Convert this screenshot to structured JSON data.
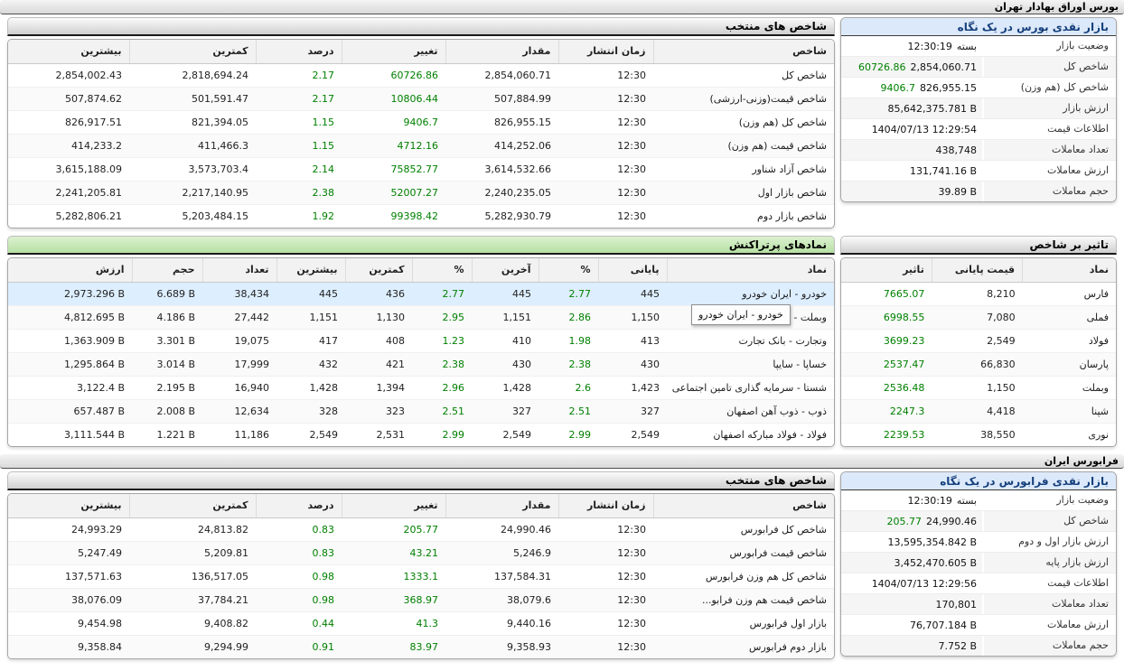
{
  "colors": {
    "positive": "#008000",
    "highlight-row": "#ddeeff",
    "green-bar": "#b6e0a3",
    "blue-head-bg": "#dce9fa",
    "blue-head-text": "#16407c"
  },
  "page": {
    "bourse_title": "بورس اوراق بهادار تهران",
    "fara_title": "فرابورس ایران"
  },
  "bourse_indices": {
    "title": "شاخص های منتخب",
    "headers": [
      "شاخص",
      "زمان انتشار",
      "مقدار",
      "تغییر",
      "درصد",
      "کمترین",
      "بیشترین"
    ],
    "rows": [
      {
        "name": "شاخص کل",
        "time": "12:30",
        "value": "2,854,060.71",
        "change": "60726.86",
        "percent": "2.17",
        "low": "2,818,694.24",
        "high": "2,854,002.43"
      },
      {
        "name": "شاخص قیمت(وزنی-ارزشی)",
        "time": "12:30",
        "value": "507,884.99",
        "change": "10806.44",
        "percent": "2.17",
        "low": "501,591.47",
        "high": "507,874.62"
      },
      {
        "name": "شاخص کل (هم وزن)",
        "time": "12:30",
        "value": "826,955.15",
        "change": "9406.7",
        "percent": "1.15",
        "low": "821,394.05",
        "high": "826,917.51"
      },
      {
        "name": "شاخص قیمت (هم وزن)",
        "time": "12:30",
        "value": "414,252.06",
        "change": "4712.16",
        "percent": "1.15",
        "low": "411,466.3",
        "high": "414,233.2"
      },
      {
        "name": "شاخص آزاد شناور",
        "time": "12:30",
        "value": "3,614,532.66",
        "change": "75852.77",
        "percent": "2.14",
        "low": "3,573,703.4",
        "high": "3,615,188.09"
      },
      {
        "name": "شاخص بازار اول",
        "time": "12:30",
        "value": "2,240,235.05",
        "change": "52007.27",
        "percent": "2.38",
        "low": "2,217,140.95",
        "high": "2,241,205.81"
      },
      {
        "name": "شاخص بازار دوم",
        "time": "12:30",
        "value": "5,282,930.79",
        "change": "99398.42",
        "percent": "1.92",
        "low": "5,203,484.15",
        "high": "5,282,806.21"
      }
    ]
  },
  "bourse_glance": {
    "title": "بازار نقدی بورس در یک نگاه",
    "rows": [
      {
        "label": "وضعیت بازار",
        "pre": "بسته",
        "value": "12:30:19"
      },
      {
        "label": "شاخص کل",
        "value": "2,854,060.71",
        "change": "60726.86"
      },
      {
        "label": "شاخص کل (هم وزن)",
        "value": "826,955.15",
        "change": "9406.7"
      },
      {
        "label": "ارزش بازار",
        "value": "85,642,375.781 B"
      },
      {
        "label": "اطلاعات قیمت",
        "value": "1404/07/13 12:29:54"
      },
      {
        "label": "تعداد معاملات",
        "value": "438,748"
      },
      {
        "label": "ارزش معاملات",
        "value": "131,741.16 B"
      },
      {
        "label": "حجم معاملات",
        "value": "39.89 B"
      }
    ]
  },
  "active_symbols": {
    "title": "نمادهای پرتراکنش",
    "tooltip": "خودرو - ایران خودرو",
    "headers": [
      "نماد",
      "پایانی",
      "%",
      "آخرین",
      "%",
      "کمترین",
      "بیشترین",
      "تعداد",
      "حجم",
      "ارزش"
    ],
    "rows": [
      {
        "hl": true,
        "name": "خودرو - ایران خودرو",
        "close": "445",
        "close_pct": "2.77",
        "last": "445",
        "last_pct": "2.77",
        "low": "436",
        "high": "445",
        "count": "38,434",
        "volume": "6.689 B",
        "value": "2,973.296 B"
      },
      {
        "name": "وبملت - بانک ملت",
        "close": "1,150",
        "close_pct": "2.86",
        "last": "1,151",
        "last_pct": "2.95",
        "low": "1,130",
        "high": "1,151",
        "count": "27,442",
        "volume": "4.186 B",
        "value": "4,812.695 B"
      },
      {
        "name": "وتجارت - بانک تجارت",
        "close": "413",
        "close_pct": "1.98",
        "last": "410",
        "last_pct": "1.23",
        "low": "408",
        "high": "417",
        "count": "19,075",
        "volume": "3.301 B",
        "value": "1,363.909 B"
      },
      {
        "name": "خساپا - سایپا",
        "close": "430",
        "close_pct": "2.38",
        "last": "430",
        "last_pct": "2.38",
        "low": "421",
        "high": "432",
        "count": "17,999",
        "volume": "3.014 B",
        "value": "1,295.864 B"
      },
      {
        "name": "شستا - سرمایه گذاری تامین اجتماعی",
        "close": "1,423",
        "close_pct": "2.6",
        "last": "1,428",
        "last_pct": "2.96",
        "low": "1,394",
        "high": "1,428",
        "count": "16,940",
        "volume": "2.195 B",
        "value": "3,122.4 B"
      },
      {
        "name": "ذوب - ذوب آهن اصفهان",
        "close": "327",
        "close_pct": "2.51",
        "last": "327",
        "last_pct": "2.51",
        "low": "323",
        "high": "328",
        "count": "12,634",
        "volume": "2.008 B",
        "value": "657.487 B"
      },
      {
        "name": "فولاد - فولاد مبارکه اصفهان",
        "close": "2,549",
        "close_pct": "2.99",
        "last": "2,549",
        "last_pct": "2.99",
        "low": "2,531",
        "high": "2,549",
        "count": "11,186",
        "volume": "1.221 B",
        "value": "3,111.544 B"
      }
    ]
  },
  "index_impact": {
    "title": "تاثیر بر شاخص",
    "headers": [
      "نماد",
      "قیمت پایانی",
      "تاثیر"
    ],
    "rows": [
      {
        "name": "فارس",
        "price": "8,210",
        "impact": "7665.07"
      },
      {
        "name": "فملی",
        "price": "7,080",
        "impact": "6998.55"
      },
      {
        "name": "فولاد",
        "price": "2,549",
        "impact": "3699.23"
      },
      {
        "name": "پارسان",
        "price": "66,830",
        "impact": "2537.47"
      },
      {
        "name": "وبملت",
        "price": "1,150",
        "impact": "2536.48"
      },
      {
        "name": "شپنا",
        "price": "4,418",
        "impact": "2247.3"
      },
      {
        "name": "نوری",
        "price": "38,550",
        "impact": "2239.53"
      }
    ]
  },
  "fara_indices": {
    "title": "شاخص های منتخب",
    "headers": [
      "شاخص",
      "زمان انتشار",
      "مقدار",
      "تغییر",
      "درصد",
      "کمترین",
      "بیشترین"
    ],
    "rows": [
      {
        "name": "شاخص کل فرابورس",
        "time": "12:30",
        "value": "24,990.46",
        "change": "205.77",
        "percent": "0.83",
        "low": "24,813.82",
        "high": "24,993.29"
      },
      {
        "name": "شاخص قیمت فرابورس",
        "time": "12:30",
        "value": "5,246.9",
        "change": "43.21",
        "percent": "0.83",
        "low": "5,209.81",
        "high": "5,247.49"
      },
      {
        "name": "شاخص کل هم وزن فرابورس",
        "time": "12:30",
        "value": "137,584.31",
        "change": "1333.1",
        "percent": "0.98",
        "low": "136,517.05",
        "high": "137,571.63"
      },
      {
        "name": "شاخص قیمت هم وزن فرابو...",
        "time": "12:30",
        "value": "38,079.6",
        "change": "368.97",
        "percent": "0.98",
        "low": "37,784.21",
        "high": "38,076.09"
      },
      {
        "name": "بازار اول فرابورس",
        "time": "12:30",
        "value": "9,440.16",
        "change": "41.3",
        "percent": "0.44",
        "low": "9,408.82",
        "high": "9,454.98"
      },
      {
        "name": "بازار دوم فرابورس",
        "time": "12:30",
        "value": "9,358.93",
        "change": "83.97",
        "percent": "0.91",
        "low": "9,294.99",
        "high": "9,358.84"
      }
    ]
  },
  "fara_glance": {
    "title": "بازار نقدی فرابورس در یک نگاه",
    "rows": [
      {
        "label": "وضعیت بازار",
        "pre": "بسته",
        "value": "12:30:19"
      },
      {
        "label": "شاخص کل",
        "value": "24,990.46",
        "change": "205.77"
      },
      {
        "label": "ارزش بازار اول و دوم",
        "value": "13,595,354.842 B"
      },
      {
        "label": "ارزش بازار پایه",
        "value": "3,452,470.605 B"
      },
      {
        "label": "اطلاعات قیمت",
        "value": "1404/07/13 12:29:56"
      },
      {
        "label": "تعداد معاملات",
        "value": "170,801"
      },
      {
        "label": "ارزش معاملات",
        "value": "76,707.184 B"
      },
      {
        "label": "حجم معاملات",
        "value": "7.752 B"
      }
    ]
  }
}
